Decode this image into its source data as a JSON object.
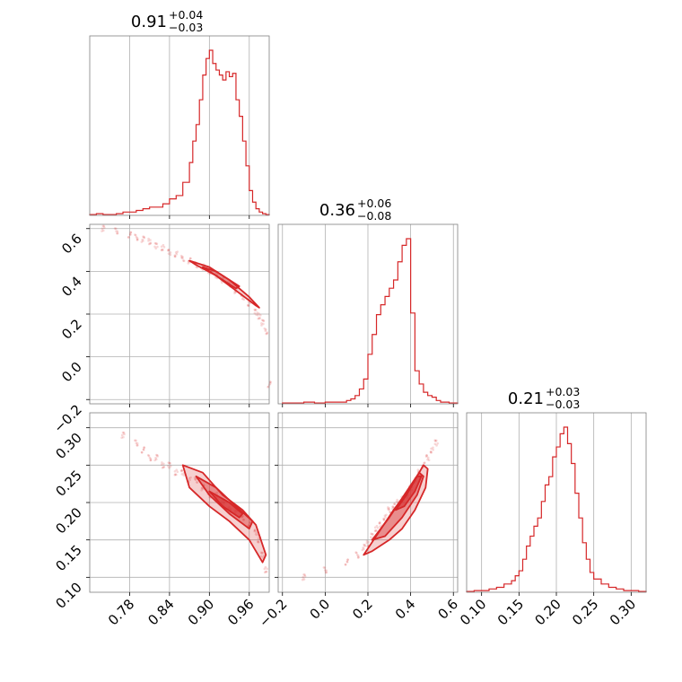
{
  "chart_data": {
    "type": "corner",
    "color": "#d62728",
    "parameters": [
      {
        "title_value": "0.91",
        "title_plus": "+0.04",
        "title_minus": "−0.03",
        "range": [
          0.72,
          0.99
        ]
      },
      {
        "title_value": "0.36",
        "title_plus": "+0.06",
        "title_minus": "−0.08",
        "range": [
          -0.22,
          0.62
        ]
      },
      {
        "title_value": "0.21",
        "title_plus": "+0.03",
        "title_minus": "−0.03",
        "range": [
          0.08,
          0.32
        ]
      }
    ],
    "ticks": {
      "p0": {
        "values": [
          0.78,
          0.84,
          0.9,
          0.96
        ],
        "labels": [
          "0.78",
          "0.84",
          "0.90",
          "0.96"
        ]
      },
      "p1": {
        "values": [
          -0.2,
          0.0,
          0.2,
          0.4,
          0.6
        ],
        "labels": [
          "−0.2",
          "0.0",
          "0.2",
          "0.4",
          "0.6"
        ]
      },
      "p2": {
        "values": [
          0.1,
          0.15,
          0.2,
          0.25,
          0.3
        ],
        "labels": [
          "0.10",
          "0.15",
          "0.20",
          "0.25",
          "0.30"
        ]
      }
    },
    "hist_p0": {
      "x": [
        0.72,
        0.73,
        0.74,
        0.75,
        0.76,
        0.77,
        0.78,
        0.79,
        0.8,
        0.81,
        0.82,
        0.83,
        0.84,
        0.85,
        0.86,
        0.87,
        0.875,
        0.88,
        0.885,
        0.89,
        0.895,
        0.9,
        0.905,
        0.91,
        0.915,
        0.92,
        0.925,
        0.93,
        0.935,
        0.94,
        0.945,
        0.95,
        0.955,
        0.96,
        0.965,
        0.97,
        0.975,
        0.98,
        0.985,
        0.99
      ],
      "y": [
        0.005,
        0.01,
        0.005,
        0.005,
        0.01,
        0.02,
        0.02,
        0.03,
        0.04,
        0.05,
        0.05,
        0.07,
        0.1,
        0.12,
        0.2,
        0.32,
        0.45,
        0.55,
        0.7,
        0.85,
        0.95,
        1.0,
        0.92,
        0.88,
        0.85,
        0.82,
        0.87,
        0.84,
        0.86,
        0.7,
        0.6,
        0.45,
        0.3,
        0.15,
        0.08,
        0.04,
        0.02,
        0.01,
        0.005,
        0.005
      ]
    },
    "hist_p1": {
      "x": [
        -0.2,
        -0.15,
        -0.1,
        -0.05,
        0.0,
        0.05,
        0.1,
        0.12,
        0.14,
        0.16,
        0.18,
        0.2,
        0.22,
        0.24,
        0.26,
        0.28,
        0.3,
        0.32,
        0.34,
        0.36,
        0.38,
        0.4,
        0.42,
        0.44,
        0.46,
        0.48,
        0.5,
        0.52,
        0.54,
        0.56,
        0.58,
        0.6
      ],
      "y": [
        0.005,
        0.005,
        0.01,
        0.005,
        0.01,
        0.01,
        0.02,
        0.03,
        0.05,
        0.09,
        0.15,
        0.3,
        0.42,
        0.54,
        0.6,
        0.65,
        0.7,
        0.75,
        0.86,
        0.96,
        1.0,
        0.55,
        0.2,
        0.12,
        0.07,
        0.05,
        0.04,
        0.02,
        0.01,
        0.01,
        0.005,
        0.005
      ]
    },
    "hist_p2": {
      "x": [
        0.08,
        0.09,
        0.1,
        0.11,
        0.12,
        0.13,
        0.14,
        0.145,
        0.15,
        0.155,
        0.16,
        0.165,
        0.17,
        0.175,
        0.18,
        0.185,
        0.19,
        0.195,
        0.2,
        0.205,
        0.21,
        0.215,
        0.22,
        0.225,
        0.23,
        0.235,
        0.24,
        0.245,
        0.25,
        0.26,
        0.27,
        0.28,
        0.29,
        0.3,
        0.31
      ],
      "y": [
        0.005,
        0.01,
        0.01,
        0.02,
        0.03,
        0.05,
        0.07,
        0.1,
        0.13,
        0.2,
        0.28,
        0.34,
        0.4,
        0.45,
        0.55,
        0.65,
        0.7,
        0.82,
        0.88,
        0.96,
        1.0,
        0.9,
        0.78,
        0.6,
        0.45,
        0.3,
        0.2,
        0.12,
        0.08,
        0.05,
        0.03,
        0.02,
        0.01,
        0.01,
        0.005
      ]
    },
    "scatter_p1_vs_p0": {
      "x": [
        0.74,
        0.76,
        0.78,
        0.79,
        0.8,
        0.81,
        0.82,
        0.83,
        0.84,
        0.85,
        0.86,
        0.87,
        0.88,
        0.89,
        0.9,
        0.91,
        0.92,
        0.93,
        0.94,
        0.95,
        0.96,
        0.97,
        0.975,
        0.98,
        0.985,
        0.99
      ],
      "y": [
        0.6,
        0.59,
        0.57,
        0.56,
        0.55,
        0.54,
        0.52,
        0.51,
        0.49,
        0.48,
        0.46,
        0.45,
        0.43,
        0.42,
        0.4,
        0.38,
        0.36,
        0.34,
        0.31,
        0.28,
        0.25,
        0.21,
        0.19,
        0.16,
        0.12,
        -0.13
      ]
    },
    "scatter_p2_vs_p0": {
      "x": [
        0.77,
        0.79,
        0.8,
        0.81,
        0.82,
        0.83,
        0.84,
        0.85,
        0.86,
        0.87,
        0.88,
        0.89,
        0.9,
        0.91,
        0.92,
        0.93,
        0.94,
        0.95,
        0.96,
        0.97,
        0.975,
        0.98,
        0.985
      ],
      "y": [
        0.29,
        0.28,
        0.27,
        0.26,
        0.26,
        0.25,
        0.25,
        0.24,
        0.24,
        0.23,
        0.23,
        0.22,
        0.21,
        0.21,
        0.2,
        0.19,
        0.19,
        0.18,
        0.17,
        0.16,
        0.15,
        0.13,
        0.11
      ]
    },
    "scatter_p2_vs_p1": {
      "x": [
        -0.1,
        0.0,
        0.1,
        0.15,
        0.18,
        0.2,
        0.22,
        0.24,
        0.26,
        0.28,
        0.3,
        0.32,
        0.34,
        0.36,
        0.38,
        0.4,
        0.42,
        0.44,
        0.46,
        0.48,
        0.5,
        0.52
      ],
      "y": [
        0.1,
        0.11,
        0.12,
        0.13,
        0.14,
        0.145,
        0.155,
        0.165,
        0.17,
        0.18,
        0.19,
        0.195,
        0.2,
        0.205,
        0.21,
        0.22,
        0.23,
        0.24,
        0.25,
        0.26,
        0.27,
        0.28
      ]
    },
    "contours_p1_vs_p0": [
      {
        "x": [
          0.87,
          0.9,
          0.93,
          0.96,
          0.975,
          0.97,
          0.94,
          0.91,
          0.88,
          0.87
        ],
        "y": [
          0.45,
          0.42,
          0.36,
          0.28,
          0.23,
          0.24,
          0.31,
          0.38,
          0.43,
          0.45
        ]
      },
      {
        "x": [
          0.89,
          0.91,
          0.93,
          0.945,
          0.94,
          0.92,
          0.9,
          0.89
        ],
        "y": [
          0.42,
          0.4,
          0.36,
          0.33,
          0.32,
          0.36,
          0.4,
          0.42
        ]
      }
    ],
    "contours_p2_vs_p0": [
      {
        "x": [
          0.86,
          0.89,
          0.92,
          0.95,
          0.97,
          0.985,
          0.98,
          0.96,
          0.93,
          0.9,
          0.87,
          0.86
        ],
        "y": [
          0.25,
          0.24,
          0.21,
          0.19,
          0.17,
          0.13,
          0.12,
          0.15,
          0.175,
          0.195,
          0.22,
          0.25
        ]
      },
      {
        "x": [
          0.88,
          0.91,
          0.94,
          0.965,
          0.96,
          0.93,
          0.9,
          0.88
        ],
        "y": [
          0.235,
          0.22,
          0.195,
          0.175,
          0.165,
          0.185,
          0.21,
          0.235
        ]
      },
      {
        "x": [
          0.9,
          0.93,
          0.95,
          0.945,
          0.92,
          0.9
        ],
        "y": [
          0.215,
          0.2,
          0.185,
          0.18,
          0.195,
          0.215
        ]
      }
    ],
    "contours_p2_vs_p1": [
      {
        "x": [
          0.18,
          0.25,
          0.32,
          0.4,
          0.46,
          0.48,
          0.47,
          0.42,
          0.36,
          0.3,
          0.22,
          0.18
        ],
        "y": [
          0.13,
          0.16,
          0.19,
          0.22,
          0.25,
          0.245,
          0.22,
          0.19,
          0.165,
          0.15,
          0.135,
          0.13
        ]
      },
      {
        "x": [
          0.22,
          0.3,
          0.37,
          0.44,
          0.46,
          0.43,
          0.36,
          0.28,
          0.22
        ],
        "y": [
          0.15,
          0.18,
          0.21,
          0.24,
          0.235,
          0.21,
          0.18,
          0.155,
          0.15
        ]
      },
      {
        "x": [
          0.33,
          0.38,
          0.43,
          0.45,
          0.42,
          0.37,
          0.33
        ],
        "y": [
          0.19,
          0.21,
          0.235,
          0.235,
          0.215,
          0.195,
          0.19
        ]
      }
    ]
  }
}
